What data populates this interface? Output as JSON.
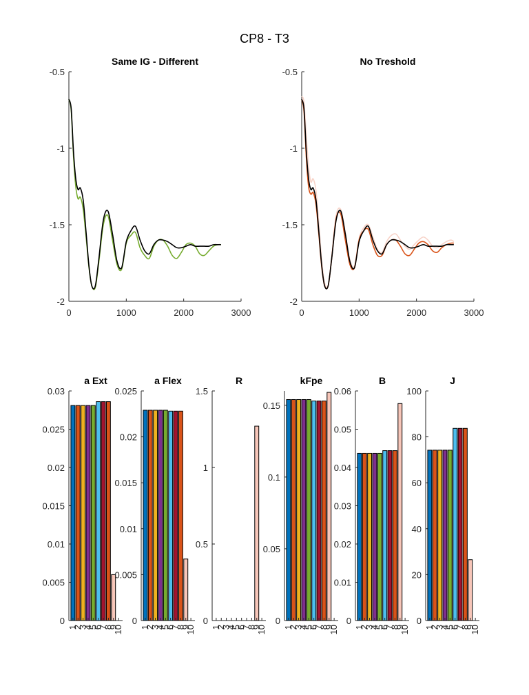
{
  "figure_title": "CP8 - T3",
  "colors": {
    "black": "#000000",
    "green": "#77ac30",
    "orange_dark": "#d95319",
    "orange_light": "#f4b49b",
    "orange_pale": "#f8d3c8",
    "bar_palette": [
      "#0072bd",
      "#d95319",
      "#edb120",
      "#7e2f8e",
      "#77ac30",
      "#4dbeee",
      "#a2142f",
      "#d95319",
      "#f7c6b9",
      "#f7c6b9"
    ]
  },
  "chart_data": [
    {
      "type": "line",
      "title": "Same IG - Different",
      "xlim": [
        0,
        3000
      ],
      "ylim": [
        -2,
        -0.5
      ],
      "xticks": [
        0,
        1000,
        2000,
        3000
      ],
      "yticks": [
        -2,
        -1.5,
        -1,
        -0.5
      ],
      "xtick_labels": [
        "0",
        "1000",
        "2000",
        "3000"
      ],
      "ytick_labels": [
        "-2",
        "-1.5",
        "-1",
        "-0.5"
      ],
      "series": [
        {
          "color": "#77ac30",
          "x": [
            0,
            40,
            80,
            120,
            160,
            200,
            250,
            300,
            350,
            400,
            460,
            520,
            600,
            680,
            760,
            840,
            920,
            1000,
            1080,
            1160,
            1240,
            1320,
            1400,
            1480,
            1560,
            1640,
            1720,
            1800,
            1880,
            1960,
            2040,
            2120,
            2200,
            2280,
            2360,
            2440,
            2520,
            2600,
            2650
          ],
          "y": [
            -0.68,
            -0.75,
            -1.05,
            -1.25,
            -1.33,
            -1.32,
            -1.4,
            -1.58,
            -1.78,
            -1.9,
            -1.91,
            -1.75,
            -1.5,
            -1.44,
            -1.6,
            -1.76,
            -1.79,
            -1.62,
            -1.57,
            -1.55,
            -1.65,
            -1.7,
            -1.72,
            -1.64,
            -1.6,
            -1.6,
            -1.64,
            -1.7,
            -1.72,
            -1.68,
            -1.63,
            -1.62,
            -1.64,
            -1.69,
            -1.7,
            -1.67,
            -1.64,
            -1.63,
            -1.63
          ]
        },
        {
          "color": "#000000",
          "x": [
            0,
            40,
            80,
            120,
            160,
            200,
            250,
            300,
            350,
            400,
            460,
            520,
            600,
            680,
            760,
            840,
            920,
            1000,
            1080,
            1160,
            1240,
            1320,
            1400,
            1480,
            1560,
            1640,
            1720,
            1800,
            1880,
            1960,
            2040,
            2120,
            2200,
            2280,
            2360,
            2440,
            2520,
            2600,
            2650
          ],
          "y": [
            -0.68,
            -0.74,
            -1.02,
            -1.2,
            -1.27,
            -1.26,
            -1.34,
            -1.55,
            -1.77,
            -1.9,
            -1.9,
            -1.73,
            -1.47,
            -1.41,
            -1.56,
            -1.74,
            -1.78,
            -1.61,
            -1.54,
            -1.51,
            -1.6,
            -1.67,
            -1.69,
            -1.63,
            -1.6,
            -1.6,
            -1.61,
            -1.63,
            -1.65,
            -1.65,
            -1.64,
            -1.63,
            -1.64,
            -1.64,
            -1.64,
            -1.64,
            -1.63,
            -1.63,
            -1.63
          ]
        }
      ]
    },
    {
      "type": "line",
      "title": "No Treshold",
      "xlim": [
        0,
        3000
      ],
      "ylim": [
        -2,
        -0.5
      ],
      "xticks": [
        0,
        1000,
        2000,
        3000
      ],
      "yticks": [
        -2,
        -1.5,
        -1,
        -0.5
      ],
      "xtick_labels": [
        "0",
        "1000",
        "2000",
        "3000"
      ],
      "ytick_labels": [
        "-2",
        "-1.5",
        "-1",
        "-0.5"
      ],
      "series": [
        {
          "color": "#f8d3c8",
          "x": [
            0,
            40,
            80,
            120,
            160,
            200,
            250,
            300,
            350,
            400,
            460,
            520,
            600,
            680,
            760,
            840,
            920,
            1000,
            1080,
            1160,
            1240,
            1320,
            1400,
            1480,
            1560,
            1640,
            1720,
            1800,
            1880,
            1960,
            2040,
            2120,
            2200,
            2280,
            2360,
            2440,
            2520,
            2600,
            2650
          ],
          "y": [
            -0.66,
            -0.7,
            -0.92,
            -1.12,
            -1.22,
            -1.2,
            -1.28,
            -1.5,
            -1.74,
            -1.88,
            -1.9,
            -1.72,
            -1.44,
            -1.4,
            -1.55,
            -1.73,
            -1.77,
            -1.59,
            -1.52,
            -1.5,
            -1.58,
            -1.66,
            -1.68,
            -1.61,
            -1.57,
            -1.56,
            -1.6,
            -1.64,
            -1.66,
            -1.63,
            -1.6,
            -1.58,
            -1.6,
            -1.64,
            -1.65,
            -1.63,
            -1.61,
            -1.6,
            -1.61
          ]
        },
        {
          "color": "#d95319",
          "x": [
            0,
            40,
            80,
            120,
            160,
            200,
            250,
            300,
            350,
            400,
            460,
            520,
            600,
            680,
            760,
            840,
            920,
            1000,
            1080,
            1160,
            1240,
            1320,
            1400,
            1480,
            1560,
            1640,
            1720,
            1800,
            1880,
            1960,
            2040,
            2120,
            2200,
            2280,
            2360,
            2440,
            2520,
            2600,
            2650
          ],
          "y": [
            -0.68,
            -0.76,
            -1.06,
            -1.25,
            -1.3,
            -1.29,
            -1.37,
            -1.57,
            -1.78,
            -1.9,
            -1.9,
            -1.73,
            -1.46,
            -1.43,
            -1.6,
            -1.76,
            -1.78,
            -1.6,
            -1.54,
            -1.53,
            -1.63,
            -1.7,
            -1.7,
            -1.63,
            -1.6,
            -1.6,
            -1.64,
            -1.69,
            -1.7,
            -1.66,
            -1.62,
            -1.61,
            -1.63,
            -1.67,
            -1.68,
            -1.65,
            -1.63,
            -1.62,
            -1.62
          ]
        },
        {
          "color": "#000000",
          "x": [
            0,
            40,
            80,
            120,
            160,
            200,
            250,
            300,
            350,
            400,
            460,
            520,
            600,
            680,
            760,
            840,
            920,
            1000,
            1080,
            1160,
            1240,
            1320,
            1400,
            1480,
            1560,
            1640,
            1720,
            1800,
            1880,
            1960,
            2040,
            2120,
            2200,
            2280,
            2360,
            2440,
            2520,
            2600,
            2650
          ],
          "y": [
            -0.68,
            -0.74,
            -1.02,
            -1.2,
            -1.27,
            -1.26,
            -1.34,
            -1.55,
            -1.77,
            -1.9,
            -1.9,
            -1.73,
            -1.47,
            -1.41,
            -1.56,
            -1.74,
            -1.78,
            -1.61,
            -1.54,
            -1.51,
            -1.6,
            -1.67,
            -1.69,
            -1.63,
            -1.6,
            -1.6,
            -1.61,
            -1.63,
            -1.65,
            -1.65,
            -1.64,
            -1.63,
            -1.64,
            -1.64,
            -1.64,
            -1.64,
            -1.63,
            -1.63,
            -1.63
          ]
        }
      ]
    },
    {
      "type": "bar",
      "title": "a Ext",
      "categories": [
        "1",
        "2",
        "3",
        "4",
        "5",
        "6",
        "7",
        "8",
        "9",
        "10"
      ],
      "values": [
        0.0281,
        0.0281,
        0.0281,
        0.0281,
        0.0281,
        0.0286,
        0.0286,
        0.0286,
        0.006,
        0
      ],
      "ylim": [
        0,
        0.03
      ],
      "yticks": [
        0,
        0.005,
        0.01,
        0.015,
        0.02,
        0.025,
        0.03
      ],
      "ytick_labels": [
        "0",
        "0.005",
        "0.01",
        "0.015",
        "0.02",
        "0.025",
        "0.03"
      ]
    },
    {
      "type": "bar",
      "title": "a Flex",
      "categories": [
        "1",
        "2",
        "3",
        "4",
        "5",
        "6",
        "7",
        "8",
        "9",
        "10"
      ],
      "values": [
        0.0229,
        0.0229,
        0.0229,
        0.0229,
        0.0229,
        0.0228,
        0.0228,
        0.0228,
        0.0067,
        0
      ],
      "ylim": [
        0,
        0.025
      ],
      "yticks": [
        0,
        0.005,
        0.01,
        0.015,
        0.02,
        0.025
      ],
      "ytick_labels": [
        "0",
        "0.005",
        "0.01",
        "0.015",
        "0.02",
        "0.025"
      ]
    },
    {
      "type": "bar",
      "title": "R",
      "categories": [
        "1",
        "2",
        "3",
        "4",
        "5",
        "6",
        "7",
        "8",
        "9",
        "10"
      ],
      "values": [
        0,
        0,
        0,
        0,
        0,
        0,
        0,
        0,
        1.27,
        0
      ],
      "ylim": [
        0,
        1.5
      ],
      "yticks": [
        0,
        0.5,
        1,
        1.5
      ],
      "ytick_labels": [
        "0",
        "0.5",
        "1",
        "1.5"
      ]
    },
    {
      "type": "bar",
      "title": "kFpe",
      "categories": [
        "1",
        "2",
        "3",
        "4",
        "5",
        "6",
        "7",
        "8",
        "9",
        "10"
      ],
      "values": [
        0.154,
        0.154,
        0.154,
        0.154,
        0.154,
        0.153,
        0.153,
        0.153,
        0.159,
        0
      ],
      "ylim": [
        0,
        0.16
      ],
      "yticks": [
        0,
        0.05,
        0.1,
        0.15
      ],
      "ytick_labels": [
        "0",
        "0.05",
        "0.1",
        "0.15"
      ]
    },
    {
      "type": "bar",
      "title": "B",
      "categories": [
        "1",
        "2",
        "3",
        "4",
        "5",
        "6",
        "7",
        "8",
        "9",
        "10"
      ],
      "values": [
        0.0437,
        0.0437,
        0.0437,
        0.0437,
        0.0437,
        0.0444,
        0.0444,
        0.0444,
        0.0567,
        0
      ],
      "ylim": [
        0,
        0.06
      ],
      "yticks": [
        0,
        0.01,
        0.02,
        0.03,
        0.04,
        0.05,
        0.06
      ],
      "ytick_labels": [
        "0",
        "0.01",
        "0.02",
        "0.03",
        "0.04",
        "0.05",
        "0.06"
      ]
    },
    {
      "type": "bar",
      "title": "J",
      "categories": [
        "1",
        "2",
        "3",
        "4",
        "5",
        "6",
        "7",
        "8",
        "9",
        "10"
      ],
      "values": [
        74.2,
        74.2,
        74.2,
        74.2,
        74.2,
        83.7,
        83.7,
        83.7,
        26.5,
        0
      ],
      "ylim": [
        0,
        100
      ],
      "yticks": [
        0,
        20,
        40,
        60,
        80,
        100
      ],
      "ytick_labels": [
        "0",
        "20",
        "40",
        "60",
        "80",
        "100"
      ]
    }
  ]
}
